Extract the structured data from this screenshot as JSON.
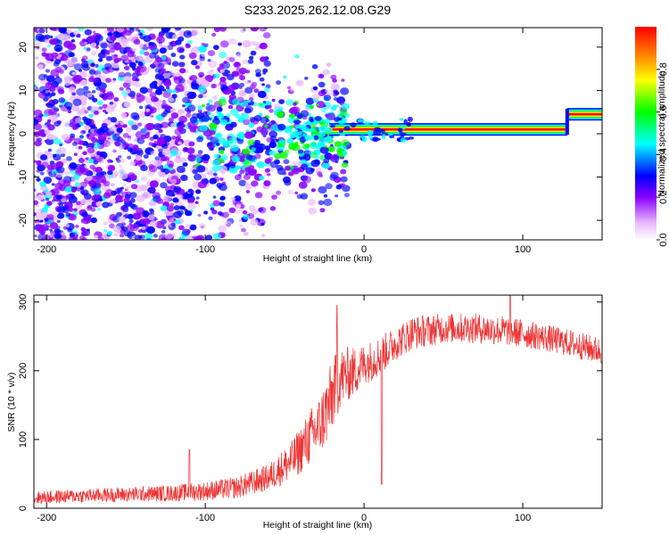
{
  "title": "S233.2025.262.12.08.G29",
  "chart_data": [
    {
      "type": "heatmap",
      "name": "spectrogram",
      "xlabel": "Height of straight line (km)",
      "ylabel": "Frequency (Hz)",
      "xlim": [
        -208,
        150
      ],
      "ylim": [
        -24.5,
        24.5
      ],
      "xticks": [
        -200,
        -100,
        0,
        100
      ],
      "xtick_labels": [
        "-200",
        "-100",
        "0",
        "100"
      ],
      "yticks": [
        -20,
        -10,
        0,
        10,
        20
      ],
      "ytick_labels": [
        "-20",
        "-10",
        "0",
        "10",
        "20"
      ],
      "colorbar": {
        "label": "Normalized spectral amplitude",
        "range": [
          0,
          1
        ],
        "ticks": [
          0.0,
          0.2,
          0.4,
          0.6,
          0.8
        ],
        "tick_labels": [
          "0.0",
          "0.2",
          "0.4",
          "0.6",
          "0.8"
        ]
      },
      "ridge": {
        "segments": [
          {
            "x_start": -22,
            "x_end": 128,
            "frequency_hz": 1.0
          },
          {
            "x_start": 128,
            "x_end": 150,
            "frequency_hz": 4.5
          }
        ],
        "amplitude": 0.95
      },
      "noise_extent_km": [
        -208,
        -18
      ]
    },
    {
      "type": "line",
      "name": "snr",
      "xlabel": "Height of straight line (km)",
      "ylabel": "SNR (10 * v/v)",
      "xlim": [
        -208,
        150
      ],
      "ylim": [
        0,
        310
      ],
      "xticks": [
        -200,
        -100,
        0,
        100
      ],
      "xtick_labels": [
        "-200",
        "-100",
        "0",
        "100"
      ],
      "yticks": [
        0,
        100,
        200,
        300
      ],
      "ytick_labels": [
        "0",
        "100",
        "200",
        "300"
      ],
      "color": "#ee3333",
      "series": [
        {
          "name": "SNR",
          "x": [
            -208,
            -180,
            -150,
            -120,
            -100,
            -80,
            -60,
            -45,
            -35,
            -28,
            -22,
            -18,
            -15,
            -10,
            -5,
            0,
            5,
            12,
            20,
            30,
            50,
            70,
            90,
            110,
            130,
            150
          ],
          "mean": [
            15,
            18,
            20,
            22,
            25,
            30,
            45,
            70,
            100,
            120,
            150,
            175,
            190,
            195,
            200,
            210,
            215,
            225,
            240,
            255,
            262,
            262,
            258,
            250,
            240,
            228
          ],
          "noise": [
            10,
            10,
            11,
            12,
            14,
            16,
            20,
            30,
            40,
            45,
            55,
            50,
            45,
            40,
            35,
            30,
            30,
            28,
            25,
            25,
            22,
            22,
            22,
            20,
            20,
            20
          ]
        }
      ],
      "annotations": [
        {
          "x": -17,
          "value": 295,
          "kind": "spike"
        },
        {
          "x": 11,
          "value": 35,
          "kind": "dip"
        },
        {
          "x": -110,
          "value": 85,
          "kind": "spike"
        },
        {
          "x": 92,
          "value": 312,
          "kind": "spike"
        }
      ]
    }
  ]
}
